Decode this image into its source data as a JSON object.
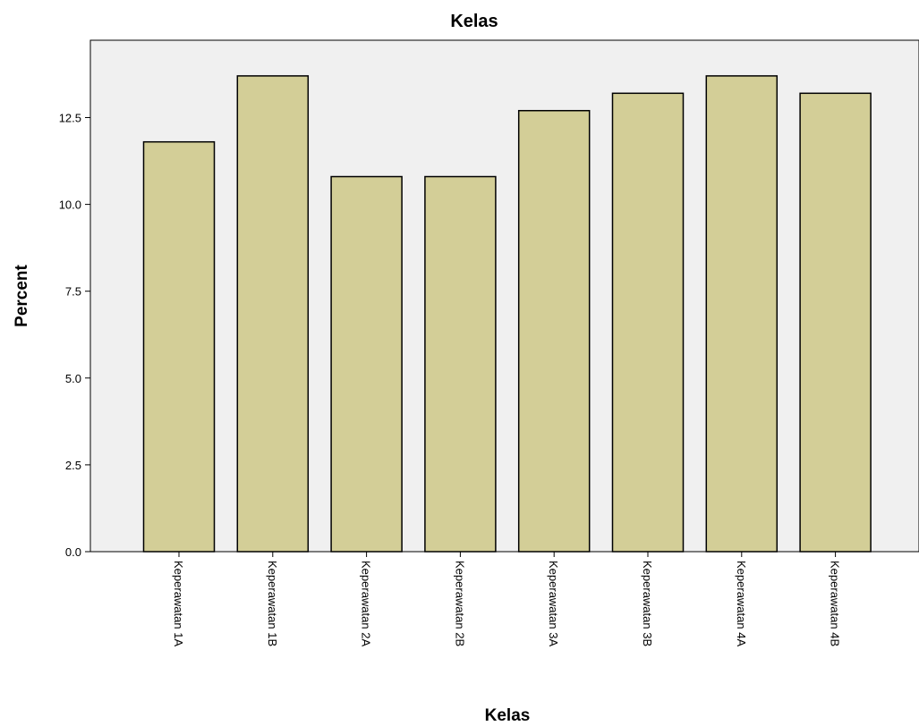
{
  "chart_data": {
    "type": "bar",
    "title": "Kelas",
    "xlabel": "Kelas",
    "ylabel": "Percent",
    "categories": [
      "Keperawatan 1A",
      "Keperawatan 1B",
      "Keperawatan 2A",
      "Keperawatan 2B",
      "Keperawatan 3A",
      "Keperawatan 3B",
      "Keperawatan 4A",
      "Keperawatan 4B"
    ],
    "values": [
      11.8,
      13.7,
      10.8,
      10.8,
      12.7,
      13.2,
      13.7,
      13.2
    ],
    "yticks": [
      "0.0",
      "2.5",
      "5.0",
      "7.5",
      "10.0",
      "12.5"
    ],
    "ylim": [
      0,
      14.5
    ],
    "grid": false,
    "colors": {
      "bar_fill": "#d3ce97",
      "bar_stroke": "#000000",
      "plot_background": "#f0f0f0"
    }
  }
}
